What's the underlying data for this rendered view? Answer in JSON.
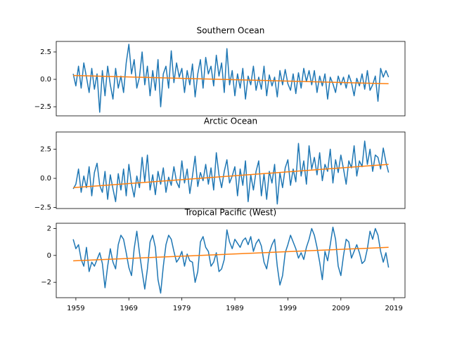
{
  "chart_data": [
    {
      "type": "line",
      "title": "Southern Ocean",
      "x": [
        1958.5,
        1959,
        1959.5,
        1960,
        1960.5,
        1961,
        1961.5,
        1962,
        1962.5,
        1963,
        1963.5,
        1964,
        1964.5,
        1965,
        1965.5,
        1966,
        1966.5,
        1967,
        1967.5,
        1968,
        1968.5,
        1969,
        1969.5,
        1970,
        1970.5,
        1971,
        1971.5,
        1972,
        1972.5,
        1973,
        1973.5,
        1974,
        1974.5,
        1975,
        1975.5,
        1976,
        1976.5,
        1977,
        1977.5,
        1978,
        1978.5,
        1979,
        1979.5,
        1980,
        1980.5,
        1981,
        1981.5,
        1982,
        1982.5,
        1983,
        1983.5,
        1984,
        1984.5,
        1985,
        1985.5,
        1986,
        1986.5,
        1987,
        1987.5,
        1988,
        1988.5,
        1989,
        1989.5,
        1990,
        1990.5,
        1991,
        1991.5,
        1992,
        1992.5,
        1993,
        1993.5,
        1994,
        1994.5,
        1995,
        1995.5,
        1996,
        1996.5,
        1997,
        1997.5,
        1998,
        1998.5,
        1999,
        1999.5,
        2000,
        2000.5,
        2001,
        2001.5,
        2002,
        2002.5,
        2003,
        2003.5,
        2004,
        2004.5,
        2005,
        2005.5,
        2006,
        2006.5,
        2007,
        2007.5,
        2008,
        2008.5,
        2009,
        2009.5,
        2010,
        2010.5,
        2011,
        2011.5,
        2012,
        2012.5,
        2013,
        2013.5,
        2014,
        2014.5,
        2015,
        2015.5,
        2016,
        2016.5,
        2017,
        2017.5,
        2018
      ],
      "series": [
        {
          "color": "#1f77b4",
          "values": [
            0.5,
            -0.6,
            1.2,
            -0.8,
            1.5,
            0.2,
            -1.2,
            1.0,
            -0.9,
            0.5,
            -3.0,
            0.8,
            -1.5,
            1.2,
            -0.5,
            -1.8,
            1.0,
            -0.8,
            0.3,
            -1.2,
            1.5,
            3.2,
            0.5,
            1.8,
            -0.8,
            0.2,
            2.5,
            -0.5,
            1.2,
            -1.5,
            0.8,
            -1.0,
            1.8,
            -2.5,
            0.5,
            1.2,
            -0.8,
            2.6,
            -0.3,
            1.5,
            0.2,
            1.0,
            -1.2,
            0.8,
            -0.5,
            1.4,
            -1.6,
            0.5,
            1.8,
            -0.8,
            2.0,
            0.5,
            1.2,
            -0.6,
            2.2,
            0.3,
            1.5,
            -1.2,
            2.8,
            -0.5,
            0.8,
            -1.5,
            0.5,
            -0.8,
            1.0,
            -1.8,
            0.3,
            -0.5,
            1.2,
            -1.0,
            0.2,
            -0.9,
            1.2,
            -1.5,
            0.4,
            -0.6,
            0.2,
            -1.6,
            0.8,
            -0.5,
            0.9,
            -0.4,
            -1.0,
            0.5,
            -1.3,
            0.6,
            -0.8,
            1.0,
            -0.2,
            0.8,
            -0.5,
            0.8,
            -1.2,
            0.3,
            -0.6,
            0.5,
            -1.8,
            0.2,
            -0.4,
            -1.2,
            0.3,
            -0.5,
            0.2,
            -0.8,
            0.4,
            -0.3,
            -1.5,
            0.1,
            -0.6,
            0.5,
            -0.9,
            0.8,
            -1.0,
            -0.5,
            0.3,
            -2.0,
            1.0,
            0.2,
            0.8,
            0.2
          ]
        },
        {
          "color": "#ff7f0e",
          "x": [
            1958.5,
            2018
          ],
          "values": [
            0.35,
            -0.4
          ]
        }
      ],
      "xlim": [
        1955.3,
        2021.1
      ],
      "ylim": [
        -3.33,
        3.46
      ],
      "yticks": [
        2.5,
        {
          "value": 0,
          "label": "0.0"
        },
        {
          "value": -2.5,
          "label": "−2.5"
        }
      ]
    },
    {
      "type": "line",
      "title": "Arctic Ocean",
      "x": [
        1958.5,
        1959,
        1959.5,
        1960,
        1960.5,
        1961,
        1961.5,
        1962,
        1962.5,
        1963,
        1963.5,
        1964,
        1964.5,
        1965,
        1965.5,
        1966,
        1966.5,
        1967,
        1967.5,
        1968,
        1968.5,
        1969,
        1969.5,
        1970,
        1970.5,
        1971,
        1971.5,
        1972,
        1972.5,
        1973,
        1973.5,
        1974,
        1974.5,
        1975,
        1975.5,
        1976,
        1976.5,
        1977,
        1977.5,
        1978,
        1978.5,
        1979,
        1979.5,
        1980,
        1980.5,
        1981,
        1981.5,
        1982,
        1982.5,
        1983,
        1983.5,
        1984,
        1984.5,
        1985,
        1985.5,
        1986,
        1986.5,
        1987,
        1987.5,
        1988,
        1988.5,
        1989,
        1989.5,
        1990,
        1990.5,
        1991,
        1991.5,
        1992,
        1992.5,
        1993,
        1993.5,
        1994,
        1994.5,
        1995,
        1995.5,
        1996,
        1996.5,
        1997,
        1997.5,
        1998,
        1998.5,
        1999,
        1999.5,
        2000,
        2000.5,
        2001,
        2001.5,
        2002,
        2002.5,
        2003,
        2003.5,
        2004,
        2004.5,
        2005,
        2005.5,
        2006,
        2006.5,
        2007,
        2007.5,
        2008,
        2008.5,
        2009,
        2009.5,
        2010,
        2010.5,
        2011,
        2011.5,
        2012,
        2012.5,
        2013,
        2013.5,
        2014,
        2014.5,
        2015,
        2015.5,
        2016,
        2016.5,
        2017,
        2017.5,
        2018
      ],
      "series": [
        {
          "color": "#1f77b4",
          "values": [
            -0.9,
            -0.5,
            0.8,
            -1.2,
            0.2,
            -0.8,
            1.0,
            -1.5,
            0.5,
            1.3,
            -0.6,
            -1.2,
            0.6,
            -1.8,
            0.3,
            -0.9,
            -2.0,
            0.4,
            -1.0,
            0.8,
            -1.5,
            1.2,
            -0.5,
            -1.6,
            0.2,
            -0.8,
            1.8,
            -0.3,
            2.0,
            -1.0,
            0.3,
            -1.4,
            0.6,
            -0.5,
            0.9,
            -1.2,
            0.1,
            -0.6,
            1.0,
            -0.3,
            -0.8,
            1.5,
            -0.4,
            0.8,
            -1.3,
            0.2,
            1.9,
            -0.7,
            0.5,
            -0.2,
            1.2,
            -0.5,
            0.9,
            -1.0,
            2.2,
            0.3,
            -0.8,
            0.6,
            1.6,
            -0.4,
            0.2,
            1.0,
            -1.5,
            0.8,
            -0.6,
            1.5,
            -2.0,
            0.3,
            -1.0,
            0.6,
            1.5,
            -1.5,
            0.4,
            -1.8,
            0.6,
            -0.4,
            1.2,
            -2.2,
            0.5,
            -0.8,
            0.9,
            1.6,
            -0.6,
            0.8,
            -0.3,
            3.0,
            0.2,
            1.5,
            -0.5,
            2.8,
            0.8,
            1.8,
            0.3,
            2.2,
            -0.2,
            1.2,
            0.6,
            2.5,
            -0.4,
            1.6,
            0.5,
            2.0,
            0.8,
            -0.5,
            1.5,
            0.9,
            2.8,
            0.2,
            1.5,
            1.0,
            3.2,
            1.2,
            2.5,
            0.6,
            2.0,
            1.8,
            0.8,
            2.6,
            1.4,
            0.5
          ]
        },
        {
          "color": "#ff7f0e",
          "x": [
            1958.5,
            2018
          ],
          "values": [
            -0.8,
            1.2
          ]
        }
      ],
      "xlim": [
        1955.3,
        2021.1
      ],
      "ylim": [
        -2.59,
        3.98
      ],
      "yticks": [
        2.5,
        {
          "value": 0,
          "label": "0.0"
        },
        {
          "value": -2.5,
          "label": "−2.5"
        }
      ]
    },
    {
      "type": "line",
      "title": "Tropical Pacific (West)",
      "x": [
        1958.5,
        1959,
        1959.5,
        1960,
        1960.5,
        1961,
        1961.5,
        1962,
        1962.5,
        1963,
        1963.5,
        1964,
        1964.5,
        1965,
        1965.5,
        1966,
        1966.5,
        1967,
        1967.5,
        1968,
        1968.5,
        1969,
        1969.5,
        1970,
        1970.5,
        1971,
        1971.5,
        1972,
        1972.5,
        1973,
        1973.5,
        1974,
        1974.5,
        1975,
        1975.5,
        1976,
        1976.5,
        1977,
        1977.5,
        1978,
        1978.5,
        1979,
        1979.5,
        1980,
        1980.5,
        1981,
        1981.5,
        1982,
        1982.5,
        1983,
        1983.5,
        1984,
        1984.5,
        1985,
        1985.5,
        1986,
        1986.5,
        1987,
        1987.5,
        1988,
        1988.5,
        1989,
        1989.5,
        1990,
        1990.5,
        1991,
        1991.5,
        1992,
        1992.5,
        1993,
        1993.5,
        1994,
        1994.5,
        1995,
        1995.5,
        1996,
        1996.5,
        1997,
        1997.5,
        1998,
        1998.5,
        1999,
        1999.5,
        2000,
        2000.5,
        2001,
        2001.5,
        2002,
        2002.5,
        2003,
        2003.5,
        2004,
        2004.5,
        2005,
        2005.5,
        2006,
        2006.5,
        2007,
        2007.5,
        2008,
        2008.5,
        2009,
        2009.5,
        2010,
        2010.5,
        2011,
        2011.5,
        2012,
        2012.5,
        2013,
        2013.5,
        2014,
        2014.5,
        2015,
        2015.5,
        2016,
        2016.5,
        2017,
        2017.5,
        2018
      ],
      "series": [
        {
          "color": "#1f77b4",
          "values": [
            1.2,
            0.5,
            0.8,
            -0.3,
            -0.8,
            0.6,
            -1.2,
            -0.5,
            -0.8,
            -0.3,
            0.2,
            -0.6,
            -2.4,
            -0.8,
            0.5,
            -0.5,
            -1.0,
            0.8,
            1.5,
            1.2,
            0.2,
            -0.9,
            -1.5,
            0.5,
            1.8,
            0.2,
            -1.2,
            -2.5,
            -1.0,
            1.0,
            1.5,
            0.6,
            -1.8,
            -2.8,
            -0.8,
            0.8,
            1.5,
            1.2,
            0.3,
            -0.5,
            -0.2,
            0.3,
            -0.8,
            0.1,
            -0.4,
            -0.5,
            -2.0,
            -1.2,
            1.0,
            1.4,
            0.6,
            0.3,
            -0.8,
            -0.5,
            0.2,
            -1.2,
            -1.0,
            -0.3,
            1.9,
            1.0,
            0.5,
            1.2,
            0.9,
            0.6,
            1.1,
            1.3,
            0.8,
            1.4,
            0.3,
            0.9,
            1.2,
            0.7,
            -0.5,
            -1.0,
            0.2,
            0.8,
            1.2,
            -0.8,
            -2.2,
            -1.5,
            0.2,
            0.8,
            1.5,
            1.0,
            0.5,
            -0.2,
            0.2,
            -0.3,
            0.6,
            1.2,
            2.0,
            1.5,
            0.6,
            -0.5,
            -1.8,
            0.3,
            -0.4,
            0.8,
            2.1,
            1.2,
            -0.8,
            -1.5,
            0.0,
            1.2,
            1.0,
            -0.2,
            0.3,
            0.8,
            0.2,
            -0.6,
            -0.4,
            0.5,
            1.8,
            1.2,
            2.0,
            1.5,
            0.3,
            -0.5,
            0.2,
            -0.9
          ]
        },
        {
          "color": "#ff7f0e",
          "x": [
            1958.5,
            2018
          ],
          "values": [
            -0.4,
            0.6
          ]
        }
      ],
      "xlim": [
        1955.3,
        2021.1
      ],
      "ylim": [
        -3.14,
        2.39
      ],
      "yticks": [
        2,
        0,
        {
          "value": -2,
          "label": "−2"
        }
      ],
      "xticks": [
        1959,
        1969,
        1979,
        1989,
        1999,
        2009,
        2019
      ]
    }
  ]
}
